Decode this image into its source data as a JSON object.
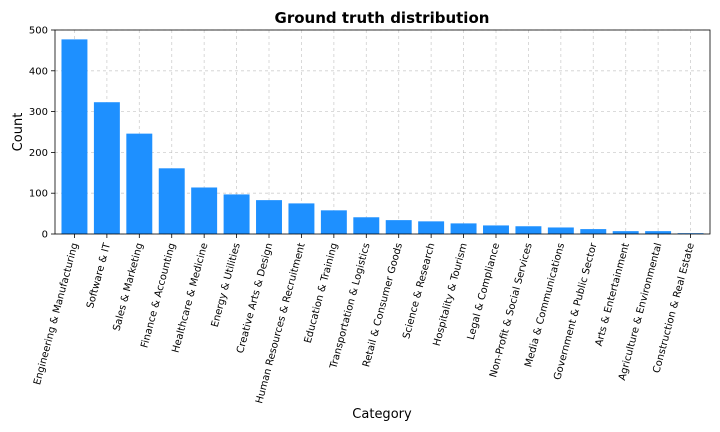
{
  "chart_data": {
    "type": "bar",
    "title": "Ground truth distribution",
    "xlabel": "Category",
    "ylabel": "Count",
    "ylim": [
      0,
      500
    ],
    "yticks": [
      0,
      100,
      200,
      300,
      400,
      500
    ],
    "grid": true,
    "bar_color": "#1e90ff",
    "categories": [
      "Engineering & Manufacturing",
      "Software & IT",
      "Sales & Marketing",
      "Finance & Accounting",
      "Healthcare & Medicine",
      "Energy & Utilities",
      "Creative Arts & Design",
      "Human Resources & Recruitment",
      "Education & Training",
      "Transportation & Logistics",
      "Retail & Consumer Goods",
      "Science & Research",
      "Hospitality & Tourism",
      "Legal & Compliance",
      "Non-Profit & Social Services",
      "Media & Communications",
      "Government & Public Sector",
      "Arts & Entertainment",
      "Agriculture & Environmental",
      "Construction & Real Estate"
    ],
    "values": [
      477,
      323,
      246,
      161,
      114,
      97,
      83,
      75,
      58,
      41,
      34,
      31,
      26,
      21,
      19,
      16,
      12,
      7,
      7,
      2
    ]
  }
}
